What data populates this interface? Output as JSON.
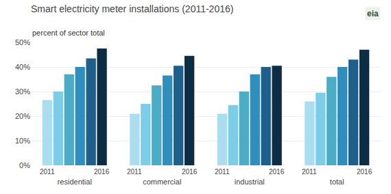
{
  "chart_data": {
    "type": "bar",
    "title": "Smart electricity meter installations (2011-2016)",
    "subtitle": "percent of sector total",
    "annotations": [
      "eia"
    ],
    "categories": [
      "residential",
      "commercial",
      "industrial",
      "total"
    ],
    "series": [
      {
        "name": "2011",
        "color": "#aaddf0",
        "values": [
          26.5,
          21.0,
          21.0,
          26.0
        ]
      },
      {
        "color": "#7bcde8",
        "values": [
          30.0,
          25.0,
          24.5,
          29.5
        ]
      },
      {
        "color": "#4bacc6",
        "values": [
          37.0,
          32.5,
          30.0,
          36.0
        ]
      },
      {
        "color": "#2e8fbf",
        "values": [
          40.0,
          36.5,
          37.0,
          40.0
        ]
      },
      {
        "color": "#1f5f8b",
        "values": [
          43.5,
          40.5,
          40.0,
          43.0
        ]
      },
      {
        "name": "2016",
        "color": "#0d2d45",
        "values": [
          47.5,
          44.5,
          40.5,
          47.0
        ]
      }
    ],
    "ylim": [
      0,
      50
    ],
    "yticks": [
      {
        "value": 0,
        "label": "0%"
      },
      {
        "value": 10,
        "label": "10%"
      },
      {
        "value": 20,
        "label": "20%"
      },
      {
        "value": 30,
        "label": "30%"
      },
      {
        "value": 40,
        "label": "40%"
      },
      {
        "value": 50,
        "label": "50%"
      }
    ],
    "grid": true
  }
}
